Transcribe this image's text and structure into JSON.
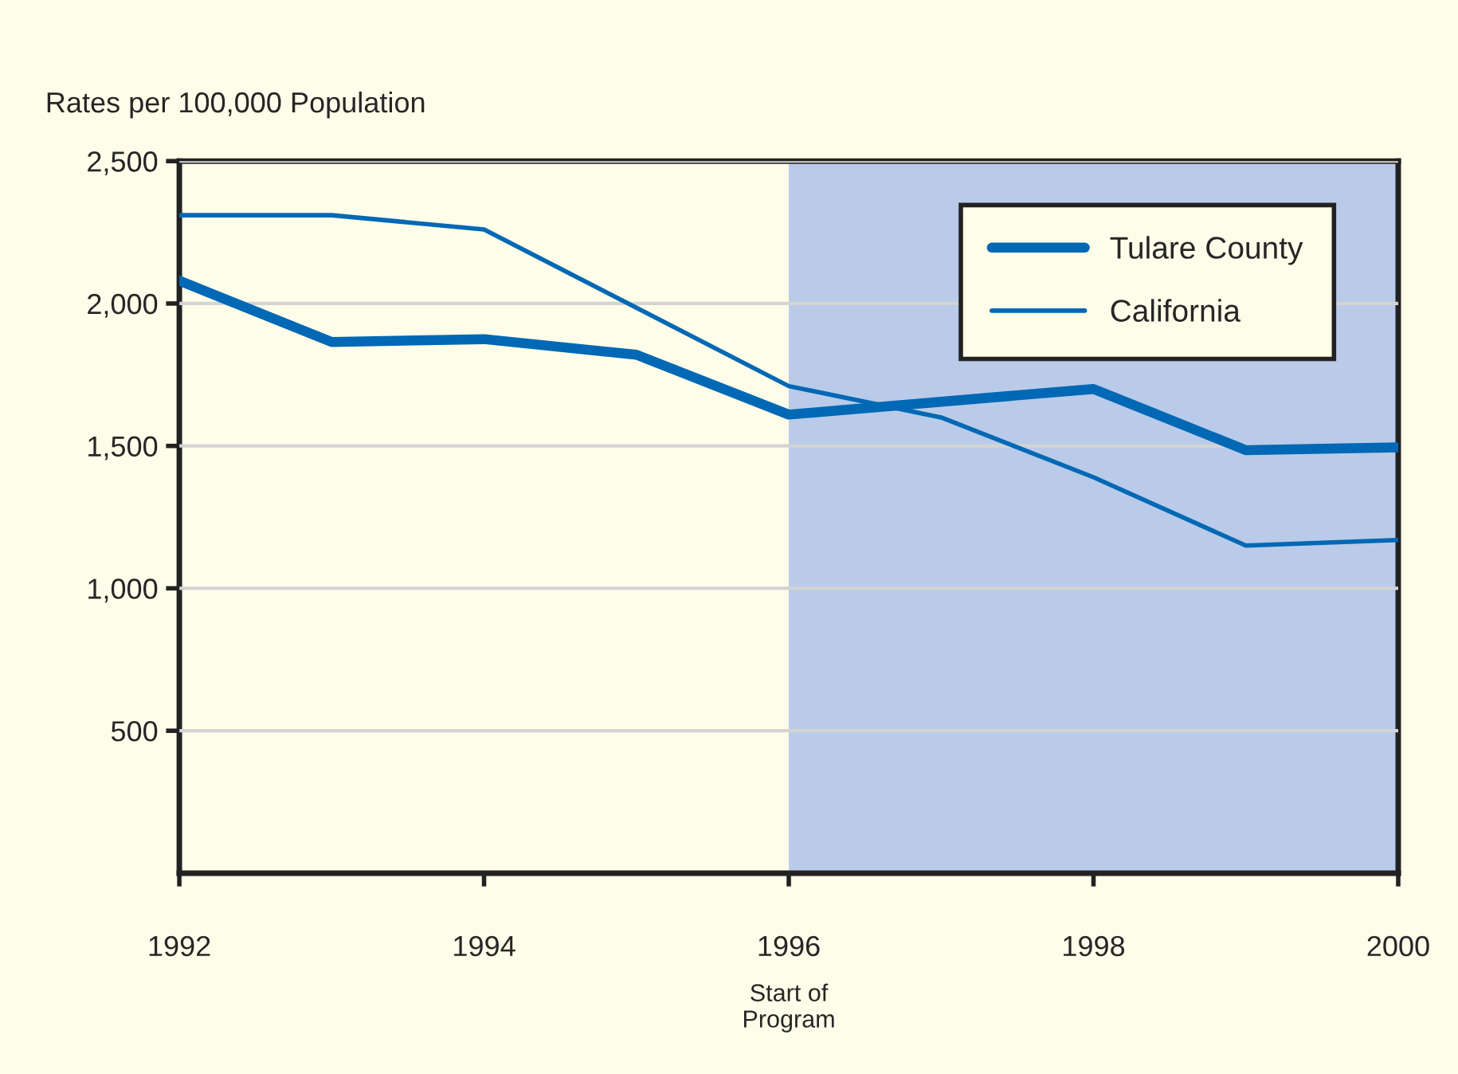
{
  "chart_data": {
    "type": "line",
    "ylabel": "Rates per 100,000 Population",
    "x": [
      1992,
      1993,
      1994,
      1995,
      1996,
      1997,
      1998,
      1999,
      2000
    ],
    "series": [
      {
        "name": "Tulare County",
        "color": "#0068b4",
        "values": [
          2080,
          1865,
          1875,
          1820,
          1610,
          1655,
          1700,
          1485,
          1495
        ]
      },
      {
        "name": "California",
        "color": "#0068b4",
        "values": [
          2310,
          2310,
          2260,
          1985,
          1710,
          1600,
          1390,
          1150,
          1170
        ]
      }
    ],
    "xlim": [
      1992,
      2000
    ],
    "xticks": [
      1992,
      1994,
      1996,
      1998,
      2000
    ],
    "ylim": [
      0,
      2500
    ],
    "yticks": [
      500,
      {
        "value": 1000,
        "label": "1,000"
      },
      {
        "value": 1500,
        "label": "1,500"
      },
      {
        "value": 2000,
        "label": "2,000"
      },
      {
        "value": 2500,
        "label": "2,500"
      }
    ],
    "bands": [
      {
        "axis": "x",
        "from": 1996,
        "to": 2000,
        "color": "#b9cbe9"
      }
    ],
    "annotations": [
      "Start of\nProgram"
    ],
    "grid": "y",
    "legend": "top right",
    "marker": "none",
    "line_style": "solid"
  }
}
